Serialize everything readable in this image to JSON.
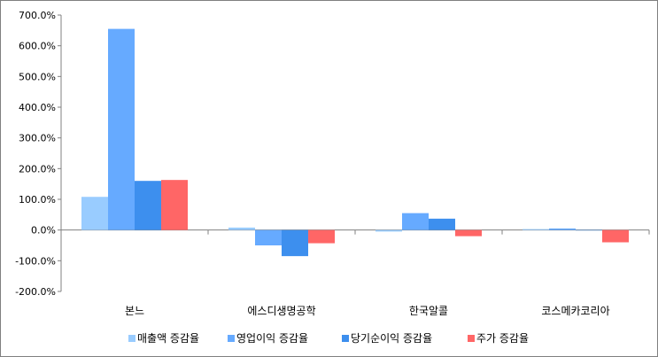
{
  "chart_data": {
    "type": "bar",
    "categories": [
      "본느",
      "에스디생명공학",
      "한국알콜",
      "코스메카코리아"
    ],
    "series": [
      {
        "name": "매출액 증감율",
        "color": "#99ccff",
        "values": [
          108,
          8,
          -5,
          3
        ]
      },
      {
        "name": "영업이익 증감율",
        "color": "#66aaff",
        "values": [
          655,
          -50,
          55,
          5
        ]
      },
      {
        "name": "당기순이익 증감율",
        "color": "#3d8fee",
        "values": [
          160,
          -85,
          37,
          0
        ]
      },
      {
        "name": "주가 증감율",
        "color": "#ff6666",
        "values": [
          163,
          -43,
          -20,
          -40
        ]
      }
    ],
    "yticks": [
      "700.0%",
      "600.0%",
      "500.0%",
      "400.0%",
      "300.0%",
      "200.0%",
      "100.0%",
      "0.0%",
      "-100.0%",
      "-200.0%"
    ],
    "ylim": [
      -200,
      700
    ],
    "grid": false,
    "legend": "bottom"
  }
}
